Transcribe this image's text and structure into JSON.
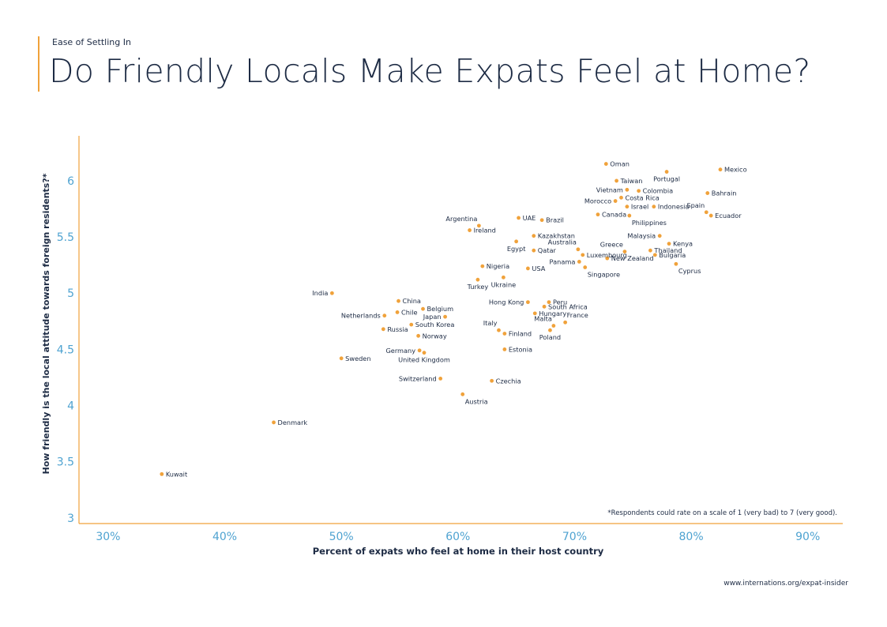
{
  "header": {
    "kicker": "Ease of Settling In",
    "title": "Do Friendly Locals Make Expats Feel at Home?"
  },
  "footer": {
    "source": "www.internations.org/expat-insider"
  },
  "colors": {
    "accent": "#f0a23b",
    "axis": "#f0a23b",
    "tick_text": "#4fa3d1",
    "point": "#f0a23b",
    "text": "#1d2b44"
  },
  "chart_data": {
    "type": "scatter",
    "xlabel": "Percent of expats who feel at home in their host country",
    "ylabel": "How friendly is the local attitude towards foreign residents?*",
    "note": "*Respondents could rate on a scale of 1 (very bad) to 7 (very good).",
    "xlim": [
      27.5,
      93
    ],
    "ylim": [
      2.95,
      6.4
    ],
    "xticks": [
      30,
      40,
      50,
      60,
      70,
      80,
      90
    ],
    "xtick_labels": [
      "30%",
      "40%",
      "50%",
      "60%",
      "70%",
      "80%",
      "90%"
    ],
    "yticks": [
      3,
      3.5,
      4,
      4.5,
      5,
      5.5,
      6
    ],
    "ytick_labels": [
      "3",
      "3.5",
      "4",
      "4.5",
      "5",
      "5.5",
      "6"
    ],
    "grid": false,
    "points": [
      {
        "label": "Kuwait",
        "x": 34.6,
        "y": 3.39,
        "pos": "r"
      },
      {
        "label": "Denmark",
        "x": 44.2,
        "y": 3.85,
        "pos": "r"
      },
      {
        "label": "India",
        "x": 49.2,
        "y": 5.0,
        "pos": "l"
      },
      {
        "label": "Sweden",
        "x": 50.0,
        "y": 4.42,
        "pos": "r"
      },
      {
        "label": "Netherlands",
        "x": 53.7,
        "y": 4.8,
        "pos": "l"
      },
      {
        "label": "Russia",
        "x": 53.6,
        "y": 4.68,
        "pos": "r"
      },
      {
        "label": "China",
        "x": 54.9,
        "y": 4.93,
        "pos": "r"
      },
      {
        "label": "Chile",
        "x": 54.8,
        "y": 4.83,
        "pos": "r"
      },
      {
        "label": "Belgium",
        "x": 57.0,
        "y": 4.86,
        "pos": "r"
      },
      {
        "label": "Japan",
        "x": 58.9,
        "y": 4.79,
        "pos": "l"
      },
      {
        "label": "South Korea",
        "x": 56.0,
        "y": 4.72,
        "pos": "r"
      },
      {
        "label": "Norway",
        "x": 56.6,
        "y": 4.62,
        "pos": "r"
      },
      {
        "label": "Germany",
        "x": 56.7,
        "y": 4.49,
        "pos": "l"
      },
      {
        "label": "United Kingdom",
        "x": 57.1,
        "y": 4.47,
        "pos": "b"
      },
      {
        "label": "Switzerland",
        "x": 58.5,
        "y": 4.24,
        "pos": "l"
      },
      {
        "label": "Austria",
        "x": 60.4,
        "y": 4.1,
        "pos": "br"
      },
      {
        "label": "Argentina",
        "x": 61.8,
        "y": 5.6,
        "pos": "tl"
      },
      {
        "label": "Ireland",
        "x": 61.0,
        "y": 5.56,
        "pos": "r"
      },
      {
        "label": "Nigeria",
        "x": 62.1,
        "y": 5.24,
        "pos": "r"
      },
      {
        "label": "Turkey",
        "x": 61.7,
        "y": 5.12,
        "pos": "b"
      },
      {
        "label": "Ukraine",
        "x": 63.9,
        "y": 5.14,
        "pos": "b"
      },
      {
        "label": "Czechia",
        "x": 62.9,
        "y": 4.22,
        "pos": "r"
      },
      {
        "label": "Estonia",
        "x": 64.0,
        "y": 4.5,
        "pos": "r"
      },
      {
        "label": "Italy",
        "x": 63.5,
        "y": 4.67,
        "pos": "tl"
      },
      {
        "label": "Finland",
        "x": 64.0,
        "y": 4.64,
        "pos": "r"
      },
      {
        "label": "UAE",
        "x": 65.2,
        "y": 5.67,
        "pos": "r"
      },
      {
        "label": "Egypt",
        "x": 65.0,
        "y": 5.46,
        "pos": "b"
      },
      {
        "label": "Qatar",
        "x": 66.5,
        "y": 5.38,
        "pos": "r"
      },
      {
        "label": "USA",
        "x": 66.0,
        "y": 5.22,
        "pos": "r"
      },
      {
        "label": "Kazakhstan",
        "x": 66.5,
        "y": 5.51,
        "pos": "r"
      },
      {
        "label": "Brazil",
        "x": 67.2,
        "y": 5.65,
        "pos": "r"
      },
      {
        "label": "Hong Kong",
        "x": 66.0,
        "y": 4.92,
        "pos": "l"
      },
      {
        "label": "Peru",
        "x": 67.8,
        "y": 4.92,
        "pos": "r"
      },
      {
        "label": "South Africa",
        "x": 67.4,
        "y": 4.88,
        "pos": "r"
      },
      {
        "label": "Hungary",
        "x": 66.6,
        "y": 4.82,
        "pos": "r"
      },
      {
        "label": "Malta",
        "x": 68.2,
        "y": 4.71,
        "pos": "tl"
      },
      {
        "label": "Poland",
        "x": 67.9,
        "y": 4.67,
        "pos": "b"
      },
      {
        "label": "France",
        "x": 69.2,
        "y": 4.74,
        "pos": "tr"
      },
      {
        "label": "Oman",
        "x": 72.7,
        "y": 6.15,
        "pos": "r"
      },
      {
        "label": "Taiwan",
        "x": 73.6,
        "y": 6.0,
        "pos": "r"
      },
      {
        "label": "Vietnam",
        "x": 74.5,
        "y": 5.92,
        "pos": "l"
      },
      {
        "label": "Colombia",
        "x": 75.5,
        "y": 5.91,
        "pos": "r"
      },
      {
        "label": "Morocco",
        "x": 73.5,
        "y": 5.82,
        "pos": "l"
      },
      {
        "label": "Costa Rica",
        "x": 74.0,
        "y": 5.85,
        "pos": "r"
      },
      {
        "label": "Israel",
        "x": 74.5,
        "y": 5.77,
        "pos": "r"
      },
      {
        "label": "Indonesia",
        "x": 76.8,
        "y": 5.77,
        "pos": "r"
      },
      {
        "label": "Canada",
        "x": 72.0,
        "y": 5.7,
        "pos": "r"
      },
      {
        "label": "Philippines",
        "x": 74.7,
        "y": 5.69,
        "pos": "br"
      },
      {
        "label": "Portugal",
        "x": 77.9,
        "y": 6.08,
        "pos": "b"
      },
      {
        "label": "Mexico",
        "x": 82.5,
        "y": 6.1,
        "pos": "r"
      },
      {
        "label": "Bahrain",
        "x": 81.4,
        "y": 5.89,
        "pos": "r"
      },
      {
        "label": "Spain",
        "x": 81.3,
        "y": 5.72,
        "pos": "tl"
      },
      {
        "label": "Ecuador",
        "x": 81.7,
        "y": 5.69,
        "pos": "r"
      },
      {
        "label": "Malaysia",
        "x": 77.3,
        "y": 5.51,
        "pos": "l"
      },
      {
        "label": "Kenya",
        "x": 78.1,
        "y": 5.44,
        "pos": "r"
      },
      {
        "label": "Australia",
        "x": 70.3,
        "y": 5.39,
        "pos": "tl"
      },
      {
        "label": "Luxembourg",
        "x": 70.7,
        "y": 5.34,
        "pos": "r"
      },
      {
        "label": "Greece",
        "x": 74.3,
        "y": 5.37,
        "pos": "tl"
      },
      {
        "label": "Thailand",
        "x": 76.5,
        "y": 5.38,
        "pos": "r"
      },
      {
        "label": "Bulgaria",
        "x": 76.9,
        "y": 5.34,
        "pos": "r"
      },
      {
        "label": "New Zealand",
        "x": 72.8,
        "y": 5.31,
        "pos": "r"
      },
      {
        "label": "Panama",
        "x": 70.4,
        "y": 5.28,
        "pos": "l"
      },
      {
        "label": "Singapore",
        "x": 70.9,
        "y": 5.23,
        "pos": "br"
      },
      {
        "label": "Cyprus",
        "x": 78.7,
        "y": 5.26,
        "pos": "br"
      }
    ]
  }
}
